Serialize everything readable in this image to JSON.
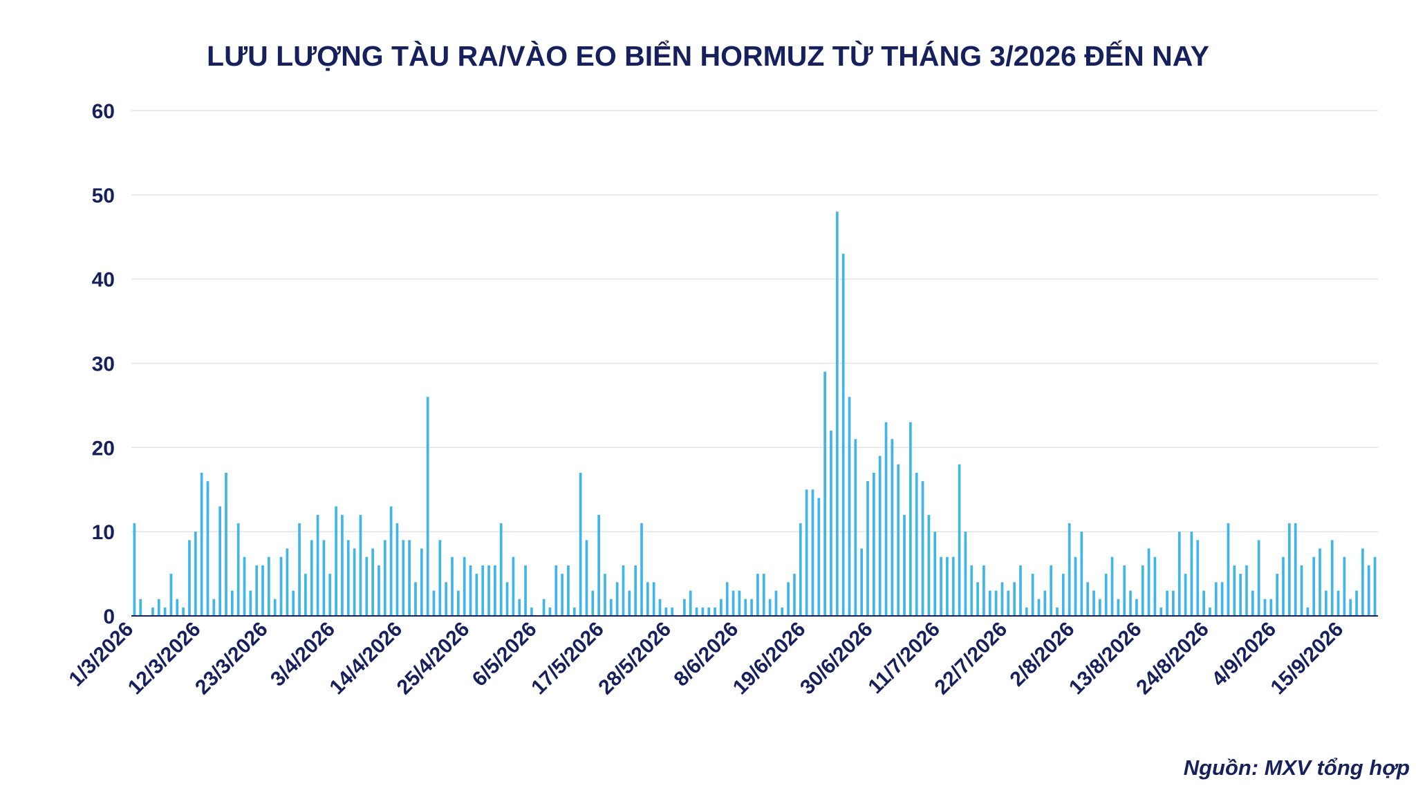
{
  "chart_data": {
    "type": "bar",
    "title": "LƯU LƯỢNG TÀU RA/VÀO EO BIỂN HORMUZ TỪ THÁNG 3/2026 ĐẾN NAY",
    "xlabel": "",
    "ylabel": "",
    "ylim": [
      0,
      60
    ],
    "yticks": [
      "0",
      "10",
      "20",
      "30",
      "40",
      "50",
      "60"
    ],
    "grid": true,
    "bar_color": "#41b6e6",
    "start_date": "1/3/2026",
    "x_tick_labels": [
      "1/3/2026",
      "12/3/2026",
      "23/3/2026",
      "3/4/2026",
      "14/4/2026",
      "25/4/2026",
      "6/5/2026",
      "17/5/2026",
      "28/5/2026",
      "8/6/2026",
      "19/6/2026",
      "30/6/2026",
      "11/7/2026",
      "22/7/2026",
      "2/8/2026",
      "13/8/2026",
      "24/8/2026",
      "4/9/2026",
      "15/9/2026"
    ],
    "values": [
      11,
      2,
      0,
      1,
      2,
      1,
      5,
      2,
      1,
      9,
      10,
      17,
      16,
      2,
      13,
      17,
      3,
      11,
      7,
      3,
      6,
      6,
      7,
      2,
      7,
      8,
      3,
      11,
      5,
      9,
      12,
      9,
      5,
      13,
      12,
      9,
      8,
      12,
      7,
      8,
      6,
      9,
      13,
      11,
      9,
      9,
      4,
      8,
      26,
      3,
      9,
      4,
      7,
      3,
      7,
      6,
      5,
      6,
      6,
      6,
      11,
      4,
      7,
      2,
      6,
      1,
      0,
      2,
      1,
      6,
      5,
      6,
      1,
      17,
      9,
      3,
      12,
      5,
      2,
      4,
      6,
      3,
      6,
      11,
      4,
      4,
      2,
      1,
      1,
      0,
      2,
      3,
      1,
      1,
      1,
      1,
      2,
      4,
      3,
      3,
      2,
      2,
      5,
      5,
      2,
      3,
      1,
      4,
      5,
      11,
      15,
      15,
      14,
      29,
      22,
      48,
      43,
      26,
      21,
      8,
      16,
      17,
      19,
      23,
      21,
      18,
      12,
      23,
      17,
      16,
      12,
      10,
      7,
      7,
      7,
      18,
      10,
      6,
      4,
      6,
      3,
      3,
      4,
      3,
      4,
      6,
      1,
      5,
      2,
      3,
      6,
      1,
      5,
      11,
      7,
      10,
      4,
      3,
      2,
      5,
      7,
      2,
      6,
      3,
      2,
      6,
      8,
      7,
      1,
      3,
      3,
      10,
      5,
      10,
      9,
      3,
      1,
      4,
      4,
      11,
      6,
      5,
      6,
      3,
      9,
      2,
      2,
      5,
      7,
      11,
      11,
      6,
      1,
      7,
      8,
      3,
      9,
      3,
      7,
      2,
      3,
      8,
      6,
      7
    ]
  },
  "footer": {
    "source": "Nguồn: MXV tổng hợp"
  }
}
